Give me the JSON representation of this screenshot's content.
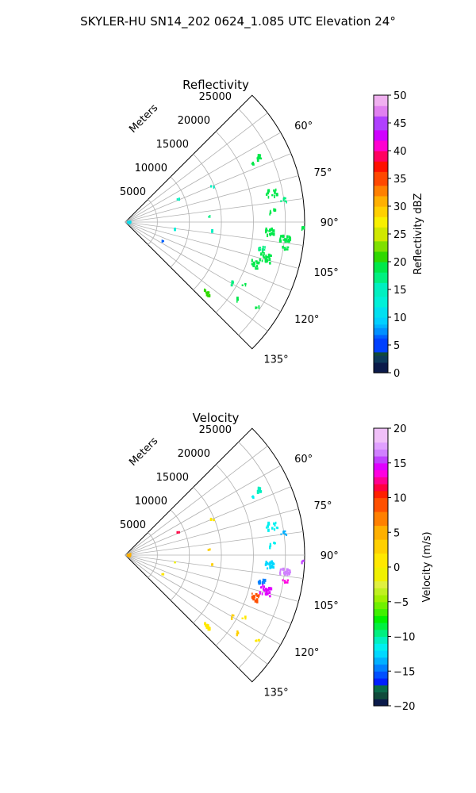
{
  "figure": {
    "suptitle": "SKYLER-HU  SN14_202  0624_1.085 UTC Elevation 24°"
  },
  "chart_data": [
    {
      "type": "polar_sector_scatter",
      "title": "Reflectivity",
      "radial_label": "Meters",
      "theta_range_deg": [
        45,
        135
      ],
      "theta_ticks_deg": [
        60,
        75,
        90,
        105,
        120,
        135
      ],
      "theta_tick_labels": [
        "60°",
        "75°",
        "90°",
        "105°",
        "120°",
        "135°"
      ],
      "r_range": [
        0,
        28000
      ],
      "r_ticks": [
        5000,
        10000,
        15000,
        20000,
        25000
      ],
      "r_tick_labels": [
        "5000",
        "10000",
        "15000",
        "20000",
        "25000"
      ],
      "grid": true,
      "colorbar": {
        "label": "Reflectivity dBZ",
        "range": [
          0,
          50
        ],
        "ticks": [
          0,
          5,
          10,
          15,
          20,
          25,
          30,
          35,
          40,
          45,
          50
        ],
        "tick_labels": [
          "0",
          "5",
          "10",
          "15",
          "20",
          "25",
          "30",
          "35",
          "40",
          "45",
          "50"
        ],
        "colormap": "pyart_NWSRef"
      },
      "points": [
        {
          "theta": 64,
          "r": 23200,
          "value": 19,
          "count": 10,
          "spread_r": 400,
          "spread_theta": 1.2
        },
        {
          "theta": 66,
          "r": 21700,
          "value": 19,
          "count": 3,
          "spread_r": 300,
          "spread_theta": 0.8
        },
        {
          "theta": 79,
          "r": 23300,
          "value": 18,
          "count": 14,
          "spread_r": 900,
          "spread_theta": 1.5
        },
        {
          "theta": 82,
          "r": 25000,
          "value": 17,
          "count": 6,
          "spread_r": 500,
          "spread_theta": 1.0
        },
        {
          "theta": 86,
          "r": 23200,
          "value": 18,
          "count": 6,
          "spread_r": 700,
          "spread_theta": 1.0
        },
        {
          "theta": 94,
          "r": 22600,
          "value": 19,
          "count": 22,
          "spread_r": 700,
          "spread_theta": 1.5
        },
        {
          "theta": 96,
          "r": 25100,
          "value": 18,
          "count": 22,
          "spread_r": 800,
          "spread_theta": 1.2
        },
        {
          "theta": 92,
          "r": 27600,
          "value": 18,
          "count": 3,
          "spread_r": 300,
          "spread_theta": 0.6
        },
        {
          "theta": 101,
          "r": 21800,
          "value": 17,
          "count": 8,
          "spread_r": 600,
          "spread_theta": 1.0
        },
        {
          "theta": 104,
          "r": 22600,
          "value": 18,
          "count": 24,
          "spread_r": 900,
          "spread_theta": 2.0
        },
        {
          "theta": 108,
          "r": 21200,
          "value": 18,
          "count": 14,
          "spread_r": 700,
          "spread_theta": 1.5
        },
        {
          "theta": 99,
          "r": 25400,
          "value": 18,
          "count": 6,
          "spread_r": 500,
          "spread_theta": 1.0
        },
        {
          "theta": 120,
          "r": 19500,
          "value": 17,
          "count": 3,
          "spread_r": 400,
          "spread_theta": 1.0
        },
        {
          "theta": 118,
          "r": 21000,
          "value": 18,
          "count": 3,
          "spread_r": 300,
          "spread_theta": 0.8
        },
        {
          "theta": 125,
          "r": 21500,
          "value": 18,
          "count": 4,
          "spread_r": 300,
          "spread_theta": 0.8
        },
        {
          "theta": 123,
          "r": 24500,
          "value": 18,
          "count": 3,
          "spread_r": 300,
          "spread_theta": 0.8
        },
        {
          "theta": 131,
          "r": 17000,
          "value": 20,
          "count": 16,
          "spread_r": 700,
          "spread_theta": 0.8
        },
        {
          "theta": 68,
          "r": 14600,
          "value": 15,
          "count": 3,
          "spread_r": 300,
          "spread_theta": 0.8
        },
        {
          "theta": 67,
          "r": 9000,
          "value": 14,
          "count": 2,
          "spread_r": 200,
          "spread_theta": 0.6
        },
        {
          "theta": 86,
          "r": 13100,
          "value": 17,
          "count": 2,
          "spread_r": 200,
          "spread_theta": 0.6
        },
        {
          "theta": 96,
          "r": 13600,
          "value": 15,
          "count": 2,
          "spread_r": 200,
          "spread_theta": 0.6
        },
        {
          "theta": 98,
          "r": 7900,
          "value": 12,
          "count": 1,
          "spread_r": 100,
          "spread_theta": 0.5
        },
        {
          "theta": 117,
          "r": 6600,
          "value": 6,
          "count": 2,
          "spread_r": 200,
          "spread_theta": 0.6
        },
        {
          "theta": 95,
          "r": 600,
          "value": 10,
          "count": 6,
          "spread_r": 300,
          "spread_theta": 15.0
        }
      ]
    },
    {
      "type": "polar_sector_scatter",
      "title": "Velocity",
      "radial_label": "Meters",
      "theta_range_deg": [
        45,
        135
      ],
      "theta_ticks_deg": [
        60,
        75,
        90,
        105,
        120,
        135
      ],
      "theta_tick_labels": [
        "60°",
        "75°",
        "90°",
        "105°",
        "120°",
        "135°"
      ],
      "r_range": [
        0,
        28000
      ],
      "r_ticks": [
        5000,
        10000,
        15000,
        20000,
        25000
      ],
      "r_tick_labels": [
        "5000",
        "10000",
        "15000",
        "20000",
        "25000"
      ],
      "grid": true,
      "colorbar": {
        "label": "Velocity (m/s)",
        "range": [
          -20,
          20
        ],
        "ticks": [
          -20,
          -15,
          -10,
          -5,
          0,
          5,
          10,
          15,
          20
        ],
        "tick_labels": [
          "−20",
          "−15",
          "−10",
          "−5",
          "0",
          "5",
          "10",
          "15",
          "20"
        ],
        "colormap": "pyart_BuDRd"
      },
      "points": [
        {
          "theta": 64,
          "r": 23200,
          "value": -11,
          "count": 10,
          "spread_r": 400,
          "spread_theta": 1.2
        },
        {
          "theta": 66,
          "r": 21700,
          "value": -12,
          "count": 3,
          "spread_r": 300,
          "spread_theta": 0.8
        },
        {
          "theta": 79,
          "r": 23300,
          "value": -12,
          "count": 14,
          "spread_r": 900,
          "spread_theta": 1.5
        },
        {
          "theta": 82,
          "r": 25000,
          "value": -14,
          "count": 6,
          "spread_r": 500,
          "spread_theta": 1.0
        },
        {
          "theta": 86,
          "r": 23200,
          "value": -12,
          "count": 6,
          "spread_r": 700,
          "spread_theta": 1.0
        },
        {
          "theta": 94,
          "r": 22600,
          "value": -13,
          "count": 22,
          "spread_r": 700,
          "spread_theta": 1.5
        },
        {
          "theta": 96,
          "r": 25100,
          "value": 16,
          "count": 22,
          "spread_r": 800,
          "spread_theta": 1.2
        },
        {
          "theta": 92,
          "r": 27600,
          "value": 15,
          "count": 3,
          "spread_r": 300,
          "spread_theta": 0.6
        },
        {
          "theta": 101,
          "r": 21800,
          "value": -15,
          "count": 8,
          "spread_r": 600,
          "spread_theta": 1.0
        },
        {
          "theta": 104,
          "r": 22600,
          "value": 14,
          "count": 24,
          "spread_r": 900,
          "spread_theta": 2.0
        },
        {
          "theta": 108,
          "r": 21200,
          "value": 9,
          "count": 14,
          "spread_r": 700,
          "spread_theta": 1.5
        },
        {
          "theta": 99,
          "r": 25400,
          "value": 13,
          "count": 6,
          "spread_r": 500,
          "spread_theta": 1.0
        },
        {
          "theta": 120,
          "r": 19500,
          "value": 2,
          "count": 3,
          "spread_r": 400,
          "spread_theta": 1.0
        },
        {
          "theta": 118,
          "r": 21000,
          "value": 1,
          "count": 3,
          "spread_r": 300,
          "spread_theta": 0.8
        },
        {
          "theta": 125,
          "r": 21500,
          "value": 2,
          "count": 4,
          "spread_r": 300,
          "spread_theta": 0.8
        },
        {
          "theta": 123,
          "r": 24500,
          "value": 1,
          "count": 3,
          "spread_r": 300,
          "spread_theta": 0.8
        },
        {
          "theta": 131,
          "r": 17000,
          "value": 1,
          "count": 16,
          "spread_r": 700,
          "spread_theta": 0.8
        },
        {
          "theta": 68,
          "r": 14600,
          "value": 1,
          "count": 3,
          "spread_r": 300,
          "spread_theta": 0.8
        },
        {
          "theta": 67,
          "r": 9000,
          "value": 11,
          "count": 2,
          "spread_r": 200,
          "spread_theta": 0.6
        },
        {
          "theta": 86,
          "r": 13100,
          "value": 2,
          "count": 2,
          "spread_r": 200,
          "spread_theta": 0.6
        },
        {
          "theta": 96,
          "r": 13600,
          "value": 2,
          "count": 2,
          "spread_r": 200,
          "spread_theta": 0.6
        },
        {
          "theta": 98,
          "r": 7900,
          "value": -2,
          "count": 1,
          "spread_r": 100,
          "spread_theta": 0.5
        },
        {
          "theta": 117,
          "r": 6600,
          "value": 1,
          "count": 2,
          "spread_r": 200,
          "spread_theta": 0.6
        },
        {
          "theta": 95,
          "r": 600,
          "value": 5,
          "count": 6,
          "spread_r": 300,
          "spread_theta": 15.0
        }
      ]
    }
  ]
}
